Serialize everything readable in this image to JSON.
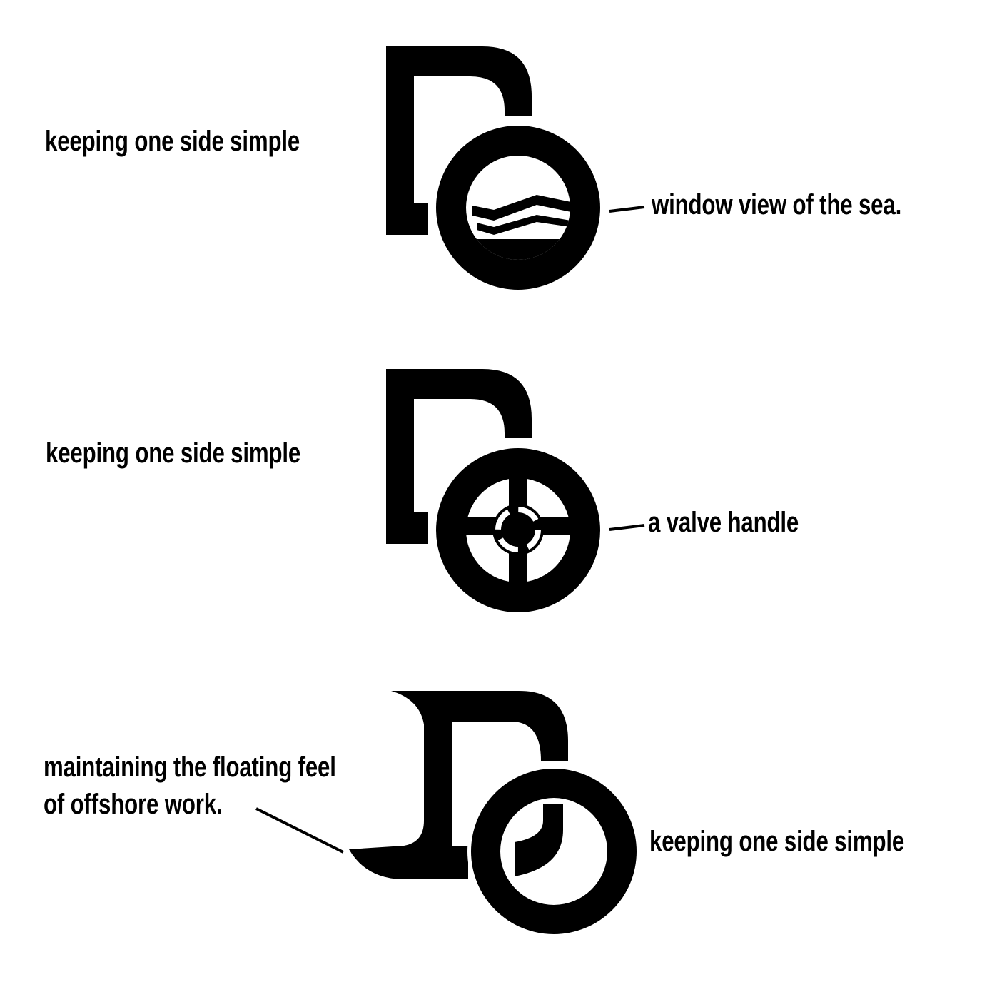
{
  "colors": {
    "ink": "#000000",
    "background": "#ffffff"
  },
  "concepts": [
    {
      "icon": "sea-window-icon",
      "side_label": "keeping one side simple",
      "callout": "window view of the sea."
    },
    {
      "icon": "valve-handle-icon",
      "side_label": "keeping one side simple",
      "callout": "a valve handle"
    },
    {
      "icon": "floating-porthole-icon",
      "callout_line1": "maintaining the floating feel",
      "callout_line2": "of offshore work.",
      "side_label": "keeping one side simple"
    }
  ]
}
